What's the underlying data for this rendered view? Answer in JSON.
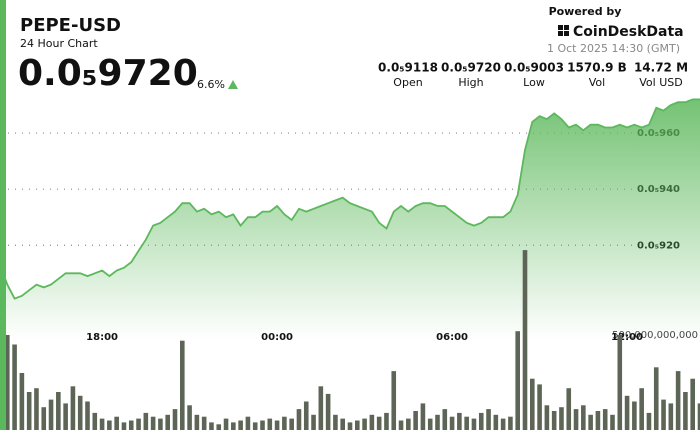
{
  "header": {
    "title": "PEPE-USD",
    "subtitle": "24 Hour Chart",
    "price": "0.0₅9720",
    "change": "6.6%",
    "powered_by": "Powered by",
    "brand": "CoinDeskData",
    "timestamp": "1 Oct 2025 14:30 (GMT)",
    "stats": [
      {
        "value": "0.0₅9118",
        "label": "Open"
      },
      {
        "value": "0.0₅9720",
        "label": "High"
      },
      {
        "value": "0.0₅9003",
        "label": "Low"
      },
      {
        "value": "1570.9 B",
        "label": "Vol"
      },
      {
        "value": "14.72 M",
        "label": "Vol USD"
      }
    ]
  },
  "chart_data": {
    "type": "combo",
    "categories": [
      null,
      null,
      null,
      null,
      null,
      null,
      null,
      null,
      null,
      null,
      null,
      null,
      null,
      null,
      "18:00",
      null,
      null,
      null,
      null,
      null,
      null,
      null,
      null,
      null,
      null,
      null,
      null,
      null,
      null,
      null,
      null,
      null,
      null,
      null,
      null,
      null,
      null,
      null,
      "00:00",
      null,
      null,
      null,
      null,
      null,
      null,
      null,
      null,
      null,
      null,
      null,
      null,
      null,
      null,
      null,
      null,
      null,
      null,
      null,
      null,
      null,
      null,
      null,
      "06:00",
      null,
      null,
      null,
      null,
      null,
      null,
      null,
      null,
      null,
      null,
      null,
      null,
      null,
      null,
      null,
      null,
      null,
      null,
      null,
      null,
      null,
      null,
      null,
      "12:00",
      null,
      null,
      null,
      null,
      null,
      null,
      null,
      null,
      null,
      null
    ],
    "series": [
      {
        "type": "area",
        "color": "#5cb85c",
        "values": [
          9.13e-06,
          9.06e-06,
          9.01e-06,
          9.02e-06,
          9.04e-06,
          9.06e-06,
          9.05e-06,
          9.06e-06,
          9.08e-06,
          9.1e-06,
          9.1e-06,
          9.1e-06,
          9.09e-06,
          9.1e-06,
          9.11e-06,
          9.09e-06,
          9.11e-06,
          9.12e-06,
          9.14e-06,
          9.18e-06,
          9.22e-06,
          9.27e-06,
          9.28e-06,
          9.3e-06,
          9.32e-06,
          9.35e-06,
          9.35e-06,
          9.32e-06,
          9.33e-06,
          9.31e-06,
          9.32e-06,
          9.3e-06,
          9.31e-06,
          9.27e-06,
          9.3e-06,
          9.3e-06,
          9.32e-06,
          9.32e-06,
          9.34e-06,
          9.31e-06,
          9.29e-06,
          9.33e-06,
          9.32e-06,
          9.33e-06,
          9.34e-06,
          9.35e-06,
          9.36e-06,
          9.37e-06,
          9.35e-06,
          9.34e-06,
          9.33e-06,
          9.32e-06,
          9.28e-06,
          9.26e-06,
          9.32e-06,
          9.34e-06,
          9.32e-06,
          9.34e-06,
          9.35e-06,
          9.35e-06,
          9.34e-06,
          9.34e-06,
          9.32e-06,
          9.3e-06,
          9.28e-06,
          9.27e-06,
          9.28e-06,
          9.3e-06,
          9.3e-06,
          9.3e-06,
          9.32e-06,
          9.38e-06,
          9.54e-06,
          9.64e-06,
          9.66e-06,
          9.65e-06,
          9.67e-06,
          9.65e-06,
          9.62e-06,
          9.63e-06,
          9.61e-06,
          9.63e-06,
          9.63e-06,
          9.62e-06,
          9.62e-06,
          9.63e-06,
          9.62e-06,
          9.63e-06,
          9.62e-06,
          9.63e-06,
          9.69e-06,
          9.68e-06,
          9.7e-06,
          9.71e-06,
          9.71e-06,
          9.72e-06,
          9.72e-06
        ]
      },
      {
        "type": "bar",
        "axis": "y2",
        "color": "#5d6656",
        "values": [
          120000000000,
          500000000000,
          450000000000,
          300000000000,
          200000000000,
          220000000000,
          120000000000,
          160000000000,
          200000000000,
          140000000000,
          230000000000,
          180000000000,
          150000000000,
          90000000000,
          60000000000,
          50000000000,
          70000000000,
          40000000000,
          50000000000,
          60000000000,
          90000000000,
          70000000000,
          60000000000,
          80000000000,
          110000000000,
          470000000000,
          130000000000,
          80000000000,
          70000000000,
          40000000000,
          30000000000,
          60000000000,
          40000000000,
          50000000000,
          70000000000,
          40000000000,
          50000000000,
          60000000000,
          50000000000,
          70000000000,
          60000000000,
          110000000000,
          150000000000,
          80000000000,
          230000000000,
          190000000000,
          80000000000,
          60000000000,
          40000000000,
          50000000000,
          60000000000,
          80000000000,
          70000000000,
          90000000000,
          310000000000,
          50000000000,
          60000000000,
          100000000000,
          140000000000,
          60000000000,
          80000000000,
          110000000000,
          70000000000,
          90000000000,
          70000000000,
          60000000000,
          90000000000,
          110000000000,
          80000000000,
          60000000000,
          70000000000,
          520000000000,
          947000000000,
          270000000000,
          240000000000,
          130000000000,
          100000000000,
          120000000000,
          220000000000,
          110000000000,
          130000000000,
          80000000000,
          100000000000,
          110000000000,
          80000000000,
          500000000000,
          180000000000,
          150000000000,
          220000000000,
          90000000000,
          330000000000,
          160000000000,
          140000000000,
          310000000000,
          200000000000,
          270000000000,
          140000000000
        ]
      }
    ],
    "ylim": [
      8.98e-06,
      9.75e-06
    ],
    "yticks": [
      {
        "value": 9.6e-06,
        "label": "0.0₅960"
      },
      {
        "value": 9.4e-06,
        "label": "0.0₅940"
      },
      {
        "value": 9.2e-06,
        "label": "0.0₅920"
      }
    ],
    "y2lim": [
      0,
      1000000000000
    ],
    "y2ticks": [
      {
        "value": 500000000000,
        "label": "500,000,000,000"
      }
    ],
    "grid": true
  }
}
